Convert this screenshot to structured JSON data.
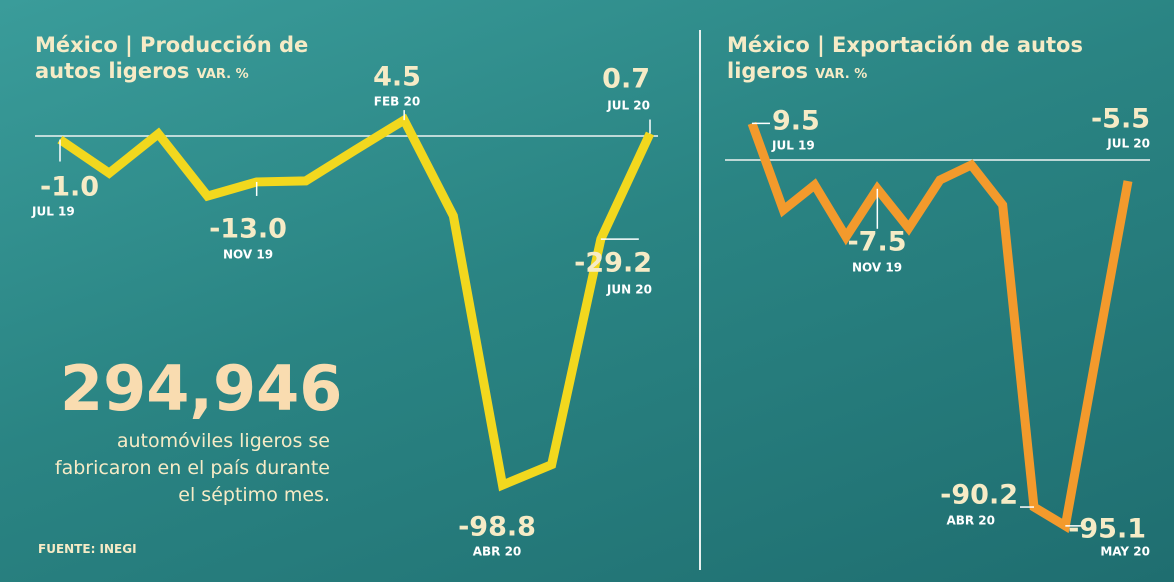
{
  "chart_data": [
    {
      "type": "line",
      "title": "México | Producción de autos ligeros",
      "y_unit": "VAR. %",
      "categories": [
        "JUL 19",
        null,
        null,
        null,
        "NOV 19",
        null,
        null,
        "FEB 20",
        null,
        "ABR 20",
        null,
        "JUN 20",
        "JUL 20"
      ],
      "values": [
        -1,
        -10.5,
        0.6,
        -17,
        -13,
        -12.7,
        -4,
        4.5,
        -22.6,
        -98.8,
        -93,
        -29.2,
        0.7
      ],
      "value_labels": [
        "-1.0",
        null,
        null,
        null,
        "-13.0",
        null,
        null,
        "4.5",
        null,
        "-98.8",
        null,
        "-29.2",
        "0.7"
      ],
      "color": "#f2d81e",
      "ylim": [
        -120,
        30
      ],
      "annotations": [
        "294,946",
        "automóviles ligeros se fabricaron en el país durante el séptimo mes."
      ],
      "source": "FUENTE: INEGI"
    },
    {
      "type": "line",
      "title": "México | Exportación de autos ligeros",
      "y_unit": "VAR. %",
      "categories": [
        "JUL 19",
        null,
        null,
        null,
        "NOV 19",
        null,
        null,
        null,
        null,
        "ABR 20",
        "MAY 20",
        null,
        "JUL 20"
      ],
      "values": [
        9.5,
        -13,
        -6.5,
        -20,
        -7.5,
        -17.7,
        -5.2,
        -1.3,
        -11.7,
        -90.2,
        -95.1,
        -50,
        -5.5
      ],
      "value_labels": [
        "9.5",
        null,
        null,
        null,
        "-7.5",
        null,
        null,
        null,
        null,
        "-90.2",
        "-95.1",
        null,
        "-5.5"
      ],
      "color": "#f39a2c",
      "ylim": [
        -105,
        30
      ]
    }
  ]
}
